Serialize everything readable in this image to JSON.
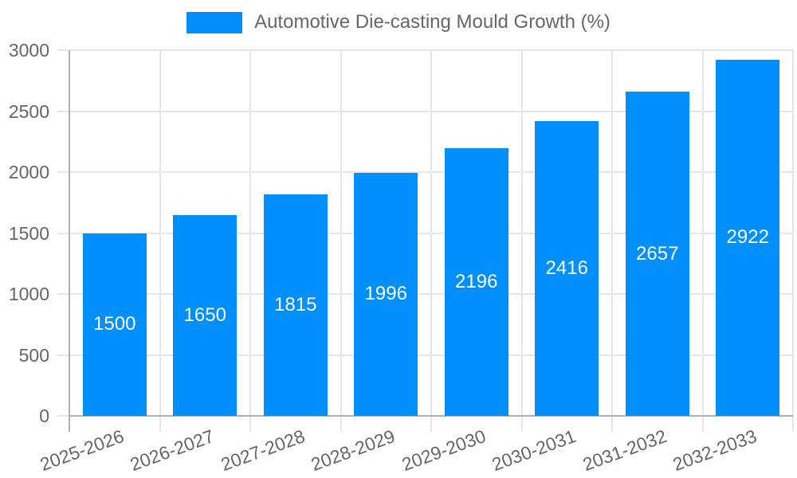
{
  "legend": {
    "series_label": "Automotive Die-casting Mould Growth (%)"
  },
  "colors": {
    "bar": "#008FFB",
    "grid": "#e6e6e6",
    "axis": "#b0b0b0",
    "tick_text": "#666666",
    "value_label_text": "#ffffff",
    "background": "#ffffff"
  },
  "chart_data": {
    "type": "bar",
    "title": "Automotive Die-casting Mould Growth (%)",
    "series_name": "Automotive Die-casting Mould Growth (%)",
    "categories": [
      "2025-2026",
      "2026-2027",
      "2027-2028",
      "2028-2029",
      "2029-2030",
      "2030-2031",
      "2031-2032",
      "2032-2033"
    ],
    "values": [
      1500,
      1650,
      1815,
      1996,
      2196,
      2416,
      2657,
      2922
    ],
    "xlabel": "",
    "ylabel": "",
    "ylim": [
      0,
      3000
    ],
    "yticks": [
      0,
      500,
      1000,
      1500,
      2000,
      2500,
      3000
    ],
    "grid": true,
    "legend_position": "top-center",
    "x_label_rotation_deg": -20,
    "data_labels": "inside-center-white"
  }
}
